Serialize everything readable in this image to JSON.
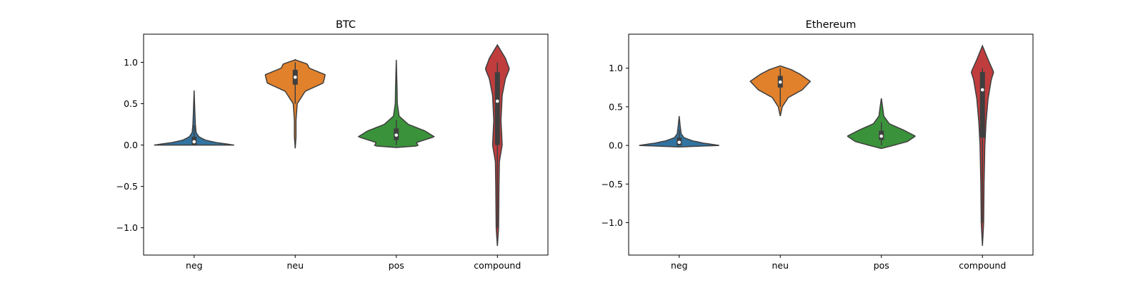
{
  "chart_data": [
    {
      "type": "violin",
      "title": "BTC",
      "xlabel": "",
      "ylabel": "",
      "ylim": [
        -1.33,
        1.34
      ],
      "yticks": [
        1.0,
        0.5,
        0.0,
        -0.5,
        -1.0
      ],
      "ytick_labels": [
        "1.0",
        "0.5",
        "0.0",
        "−0.5",
        "−1.0"
      ],
      "categories": [
        "neg",
        "neu",
        "pos",
        "compound"
      ],
      "colors": [
        "#3274a1",
        "#e1812c",
        "#3a923a",
        "#c03d3e"
      ],
      "violins": [
        {
          "category": "neg",
          "min": 0.0,
          "max": 0.66,
          "q1": 0.0,
          "median": 0.04,
          "q3": 0.1,
          "whisker_low": 0.0,
          "whisker_high": 0.24,
          "profile": [
            [
              -0.01,
              0.0
            ],
            [
              0.0,
              1.0
            ],
            [
              0.03,
              0.55
            ],
            [
              0.06,
              0.28
            ],
            [
              0.1,
              0.12
            ],
            [
              0.15,
              0.05
            ],
            [
              0.25,
              0.03
            ],
            [
              0.4,
              0.018
            ],
            [
              0.66,
              0.0
            ]
          ]
        },
        {
          "category": "neu",
          "min": -0.04,
          "max": 1.04,
          "q1": 0.73,
          "median": 0.82,
          "q3": 0.91,
          "whisker_low": 0.5,
          "whisker_high": 1.0,
          "profile": [
            [
              -0.04,
              0.0
            ],
            [
              0.1,
              0.02
            ],
            [
              0.3,
              0.02
            ],
            [
              0.5,
              0.05
            ],
            [
              0.65,
              0.25
            ],
            [
              0.75,
              0.7
            ],
            [
              0.85,
              0.75
            ],
            [
              0.93,
              0.35
            ],
            [
              0.98,
              0.3
            ],
            [
              1.03,
              0.0
            ]
          ]
        },
        {
          "category": "pos",
          "min": -0.03,
          "max": 1.03,
          "q1": 0.06,
          "median": 0.12,
          "q3": 0.2,
          "whisker_low": 0.0,
          "whisker_high": 0.3,
          "profile": [
            [
              -0.03,
              0.0
            ],
            [
              -0.01,
              0.55
            ],
            [
              0.03,
              0.5
            ],
            [
              0.1,
              0.95
            ],
            [
              0.17,
              0.72
            ],
            [
              0.25,
              0.3
            ],
            [
              0.35,
              0.07
            ],
            [
              0.5,
              0.025
            ],
            [
              0.7,
              0.018
            ],
            [
              1.03,
              0.0
            ]
          ]
        },
        {
          "category": "compound",
          "min": -1.22,
          "max": 1.21,
          "q1": 0.0,
          "median": 0.53,
          "q3": 0.88,
          "whisker_low": -1.0,
          "whisker_high": 1.0,
          "profile": [
            [
              -1.22,
              0.0
            ],
            [
              -1.0,
              0.03
            ],
            [
              -0.5,
              0.04
            ],
            [
              -0.2,
              0.05
            ],
            [
              0.0,
              0.12
            ],
            [
              0.3,
              0.09
            ],
            [
              0.6,
              0.12
            ],
            [
              0.8,
              0.2
            ],
            [
              0.92,
              0.3
            ],
            [
              1.05,
              0.2
            ],
            [
              1.21,
              0.0
            ]
          ]
        }
      ]
    },
    {
      "type": "violin",
      "title": "Ethereum",
      "xlabel": "",
      "ylabel": "",
      "ylim": [
        -1.42,
        1.44
      ],
      "yticks": [
        1.0,
        0.5,
        0.0,
        -0.5,
        -1.0
      ],
      "ytick_labels": [
        "1.0",
        "0.5",
        "0.0",
        "−0.5",
        "−1.0"
      ],
      "categories": [
        "neg",
        "neu",
        "pos",
        "compound"
      ],
      "colors": [
        "#3274a1",
        "#e1812c",
        "#3a923a",
        "#c03d3e"
      ],
      "violins": [
        {
          "category": "neg",
          "min": -0.02,
          "max": 0.38,
          "q1": 0.0,
          "median": 0.04,
          "q3": 0.1,
          "whisker_low": 0.0,
          "whisker_high": 0.2,
          "profile": [
            [
              -0.02,
              0.0
            ],
            [
              0.0,
              1.0
            ],
            [
              0.03,
              0.6
            ],
            [
              0.06,
              0.33
            ],
            [
              0.1,
              0.12
            ],
            [
              0.15,
              0.05
            ],
            [
              0.25,
              0.025
            ],
            [
              0.38,
              0.0
            ]
          ]
        },
        {
          "category": "neu",
          "min": 0.38,
          "max": 1.03,
          "q1": 0.75,
          "median": 0.82,
          "q3": 0.9,
          "whisker_low": 0.5,
          "whisker_high": 1.0,
          "profile": [
            [
              0.38,
              0.0
            ],
            [
              0.5,
              0.05
            ],
            [
              0.62,
              0.2
            ],
            [
              0.72,
              0.55
            ],
            [
              0.83,
              0.75
            ],
            [
              0.92,
              0.5
            ],
            [
              0.98,
              0.28
            ],
            [
              1.03,
              0.0
            ]
          ]
        },
        {
          "category": "pos",
          "min": -0.04,
          "max": 0.61,
          "q1": 0.07,
          "median": 0.12,
          "q3": 0.19,
          "whisker_low": 0.0,
          "whisker_high": 0.3,
          "profile": [
            [
              -0.04,
              0.0
            ],
            [
              0.0,
              0.3
            ],
            [
              0.05,
              0.65
            ],
            [
              0.12,
              0.85
            ],
            [
              0.2,
              0.55
            ],
            [
              0.28,
              0.2
            ],
            [
              0.38,
              0.06
            ],
            [
              0.5,
              0.03
            ],
            [
              0.61,
              0.0
            ]
          ]
        },
        {
          "category": "compound",
          "min": -1.3,
          "max": 1.29,
          "q1": 0.1,
          "median": 0.72,
          "q3": 0.95,
          "whisker_low": -1.0,
          "whisker_high": 1.0,
          "profile": [
            [
              -1.3,
              0.0
            ],
            [
              -1.0,
              0.03
            ],
            [
              -0.5,
              0.04
            ],
            [
              0.0,
              0.06
            ],
            [
              0.3,
              0.09
            ],
            [
              0.6,
              0.14
            ],
            [
              0.85,
              0.22
            ],
            [
              0.95,
              0.28
            ],
            [
              1.1,
              0.15
            ],
            [
              1.29,
              0.0
            ]
          ]
        }
      ]
    }
  ]
}
